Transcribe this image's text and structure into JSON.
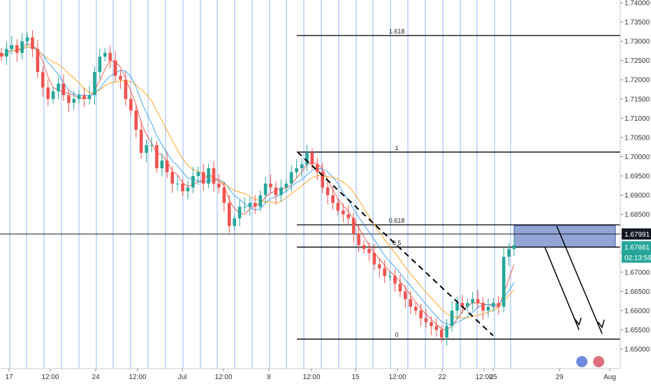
{
  "chart_data": {
    "type": "candlestick",
    "title": "",
    "price_axis": {
      "ticks": [
        "1.74000",
        "1.73500",
        "1.73000",
        "1.72500",
        "1.72000",
        "1.71500",
        "1.71000",
        "1.70500",
        "1.70000",
        "1.69500",
        "1.69000",
        "1.68500",
        "1.68000",
        "1.67500",
        "1.67000",
        "1.66500",
        "1.66000",
        "1.65500",
        "1.65000"
      ],
      "range": [
        1.6475,
        1.7415
      ]
    },
    "time_axis": {
      "ticks": [
        "17",
        "12:00",
        "24",
        "12:00",
        "Jul",
        "12:00",
        "8",
        "12:00",
        "15",
        "12:00",
        "22",
        "12:00",
        "25",
        "29",
        "Aug"
      ]
    },
    "price_tags": {
      "level": {
        "label": "1.67991",
        "value": 1.67991,
        "color": "#131722"
      },
      "last": {
        "label": "1.67661",
        "value": 1.67661,
        "color": "#26a69a"
      },
      "countdown": {
        "label": "02:13:59",
        "color": "#26a69a"
      }
    },
    "fibonacci": {
      "levels": [
        {
          "label": "1.618",
          "value": 1.7315
        },
        {
          "label": "1",
          "value": 1.7012
        },
        {
          "label": "0.618",
          "value": 1.6823
        },
        {
          "label": "0.5",
          "value": 1.6765
        },
        {
          "label": "0",
          "value": 1.6526
        }
      ]
    },
    "zone": {
      "top": 1.6821,
      "bottom": 1.6765,
      "color": "#6f87c7"
    },
    "series": [
      {
        "name": "",
        "type": "close",
        "color": "#26a69a",
        "values": [
          1.726,
          1.728,
          1.729,
          1.727,
          1.73,
          1.731,
          1.728,
          1.722,
          1.718,
          1.715,
          1.717,
          1.719,
          1.716,
          1.714,
          1.715,
          1.716,
          1.715,
          1.716,
          1.722,
          1.726,
          1.727,
          1.725,
          1.721,
          1.72,
          1.715,
          1.712,
          1.707,
          1.701,
          1.703,
          1.703,
          1.697,
          1.699,
          1.696,
          1.693,
          1.693,
          1.691,
          1.692,
          1.695,
          1.696,
          1.693,
          1.697,
          1.693,
          1.692,
          1.688,
          1.682,
          1.684,
          1.687,
          1.687,
          1.688,
          1.687,
          1.69,
          1.693,
          1.692,
          1.69,
          1.692,
          1.693,
          1.696,
          1.697,
          1.698,
          1.701,
          1.698,
          1.696,
          1.692,
          1.69,
          1.688,
          1.686,
          1.685,
          1.684,
          1.68,
          1.677,
          1.676,
          1.675,
          1.672,
          1.671,
          1.669,
          1.669,
          1.667,
          1.665,
          1.663,
          1.661,
          1.66,
          1.658,
          1.657,
          1.656,
          1.655,
          1.653,
          1.656,
          1.66,
          1.662,
          1.661,
          1.662,
          1.663,
          1.662,
          1.66,
          1.661,
          1.662,
          1.661,
          1.674,
          1.676,
          1.677
        ]
      },
      {
        "name": "",
        "type": "ma",
        "color": "#f44336",
        "values": []
      },
      {
        "name": "",
        "type": "ma",
        "color": "#2196f3",
        "values": []
      },
      {
        "name": "",
        "type": "ma",
        "color": "#ff9800",
        "values": []
      }
    ],
    "grid": true,
    "vertical_session_lines": true
  },
  "colors": {
    "up": "#26a69a",
    "down": "#ef5350",
    "session_line": "#90b4f0",
    "fib_line": "#000000",
    "trendline": "#000000"
  }
}
